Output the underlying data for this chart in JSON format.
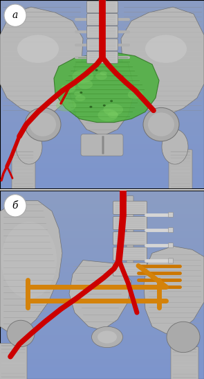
{
  "fig_width": 2.95,
  "fig_height": 5.47,
  "dpi": 100,
  "bg_color": "#8B9DC3",
  "label_a": "а",
  "label_b": "б",
  "label_fontsize": 10,
  "outer_bg": "#e8e8e8"
}
